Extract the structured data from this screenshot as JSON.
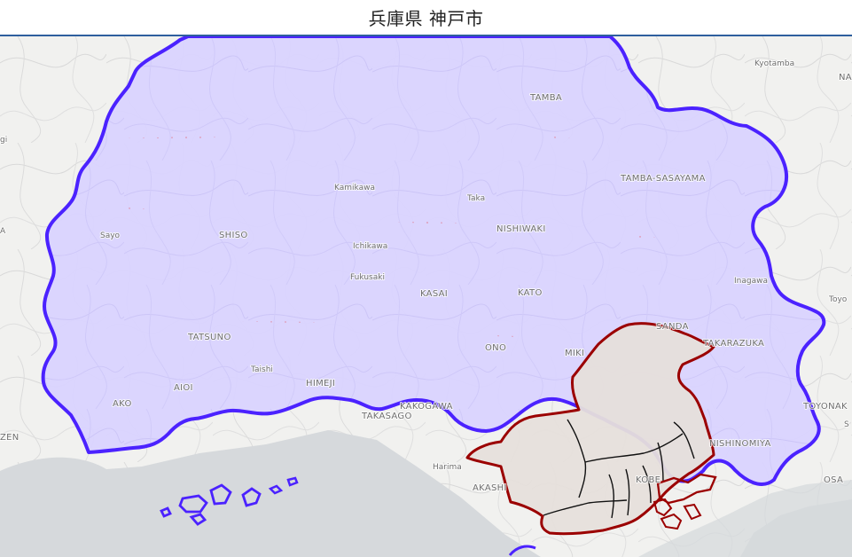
{
  "header": {
    "title": "兵庫県 神戸市"
  },
  "colors": {
    "prefecture_boundary": "#4b22ff",
    "prefecture_fill": "#d9d3ff",
    "city_boundary": "#9b0000",
    "city_fill": "#e6dfdb",
    "ward_boundary": "#111111",
    "sea": "#d6d9dc",
    "land": "#f1f1ef"
  },
  "map": {
    "labels": [
      {
        "id": "kyotamba",
        "text": "Kyotamba"
      },
      {
        "id": "na",
        "text": "NA"
      },
      {
        "id": "tamba",
        "text": "TAMBA"
      },
      {
        "id": "tamba_sasayama",
        "text": "TAMBA-SASAYAMA"
      },
      {
        "id": "kamikawa",
        "text": "Kamikawa"
      },
      {
        "id": "taka",
        "text": "Taka"
      },
      {
        "id": "nishiwaki",
        "text": "NISHIWAKI"
      },
      {
        "id": "sayo",
        "text": "Sayo"
      },
      {
        "id": "shiso",
        "text": "SHISO"
      },
      {
        "id": "ichikawa",
        "text": "Ichikawa"
      },
      {
        "id": "inagawa",
        "text": "Inagawa"
      },
      {
        "id": "toyo",
        "text": "Toyo"
      },
      {
        "id": "fukusaki",
        "text": "Fukusaki"
      },
      {
        "id": "kasai",
        "text": "KASAI"
      },
      {
        "id": "kato",
        "text": "KATO"
      },
      {
        "id": "sanda",
        "text": "SANDA"
      },
      {
        "id": "takarazuka",
        "text": "TAKARAZUKA"
      },
      {
        "id": "tatsuno",
        "text": "TATSUNO"
      },
      {
        "id": "ono",
        "text": "ONO"
      },
      {
        "id": "miki",
        "text": "MIKI"
      },
      {
        "id": "taishi",
        "text": "Taishi"
      },
      {
        "id": "himeji",
        "text": "HIMEJI"
      },
      {
        "id": "aioi",
        "text": "AIOI"
      },
      {
        "id": "ako",
        "text": "AKO"
      },
      {
        "id": "kakogawa",
        "text": "KAKOGAWA"
      },
      {
        "id": "takasago",
        "text": "TAKASAGO"
      },
      {
        "id": "toyonaka",
        "text": "TOYONAK"
      },
      {
        "id": "nishinomiya",
        "text": "NISHINOMIYA"
      },
      {
        "id": "zen",
        "text": "ZEN"
      },
      {
        "id": "harima",
        "text": "Harima"
      },
      {
        "id": "akashi",
        "text": "AKASHI"
      },
      {
        "id": "kobe",
        "text": "KOBE"
      },
      {
        "id": "osa",
        "text": "OSA"
      },
      {
        "id": "gi",
        "text": "gi"
      },
      {
        "id": "a_left",
        "text": "A"
      },
      {
        "id": "s_right",
        "text": "S"
      }
    ]
  }
}
